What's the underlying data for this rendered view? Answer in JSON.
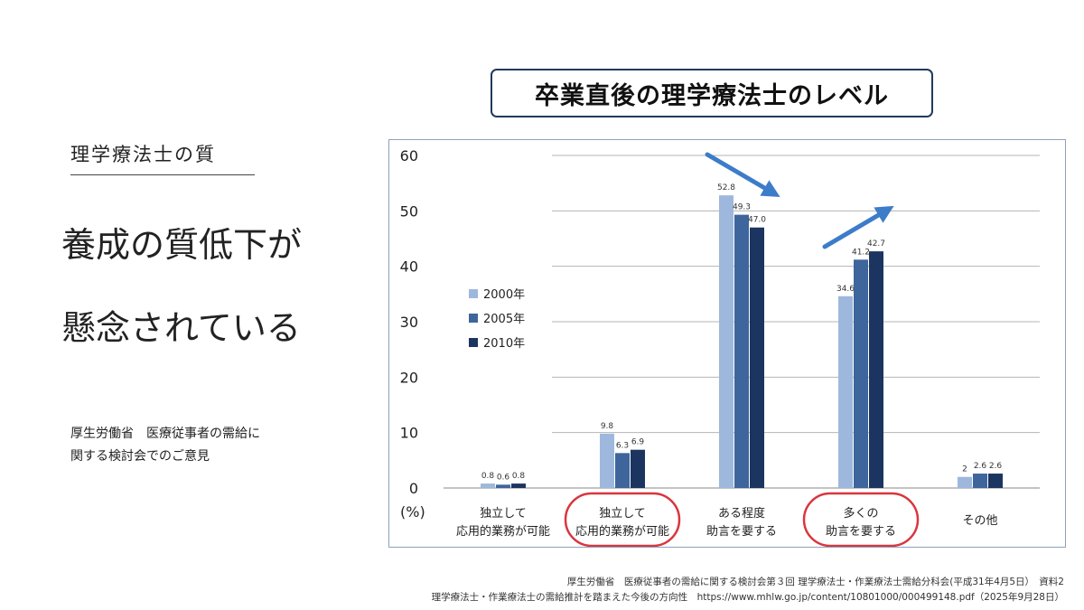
{
  "left_panel": {
    "section_label": "理学療法士の質",
    "headline_line1": "養成の質低下が",
    "headline_line2": "懸念されている",
    "source_line1": "厚生労働省　医療従事者の需給に",
    "source_line2": "関する検討会でのご意見"
  },
  "chart_title": "卒業直後の理学療法士のレベル",
  "chart_data": {
    "type": "bar",
    "title": "卒業直後の理学療法士のレベル",
    "ylabel": "(%)",
    "ylim": [
      0,
      60
    ],
    "yticks": [
      0,
      10,
      20,
      30,
      40,
      50,
      60
    ],
    "categories": [
      [
        "独立して",
        "応用的業務が可能"
      ],
      [
        "独立して",
        "応用的業務が可能"
      ],
      [
        "ある程度",
        "助言を要する"
      ],
      [
        "多くの",
        "助言を要する"
      ],
      [
        "その他"
      ]
    ],
    "series": [
      {
        "name": "2000年",
        "color": "#9db8dc",
        "values": [
          0.8,
          9.8,
          52.8,
          34.6,
          2
        ]
      },
      {
        "name": "2005年",
        "color": "#3e659c",
        "values": [
          0.6,
          6.3,
          49.3,
          41.2,
          2.6
        ]
      },
      {
        "name": "2010年",
        "color": "#1b3560",
        "values": [
          0.8,
          6.9,
          47.0,
          42.7,
          2.6
        ]
      }
    ],
    "data_labels": [
      [
        "0.8",
        "9.8",
        "52.8",
        "34.6",
        "2"
      ],
      [
        "0.6",
        "6.3",
        "49.3",
        "41.2",
        "2.6"
      ],
      [
        "0.8",
        "6.9",
        "47.0",
        "42.7",
        "2.6"
      ]
    ],
    "highlighted_categories": [
      1,
      3
    ],
    "highlight_color": "#d9363e",
    "arrow_color": "#3d7cc9",
    "legend_position": "left-middle",
    "grid": true
  },
  "footer": {
    "line1": "厚生労働省　医療従事者の需給に関する検討会第３回 理学療法士・作業療法士需給分科会(平成31年4月5日）　資料2",
    "line2": "理学療法士・作業療法士の需給推計を踏まえた今後の方向性　https://www.mhlw.go.jp/content/10801000/000499148.pdf（2025年9月28日）"
  }
}
